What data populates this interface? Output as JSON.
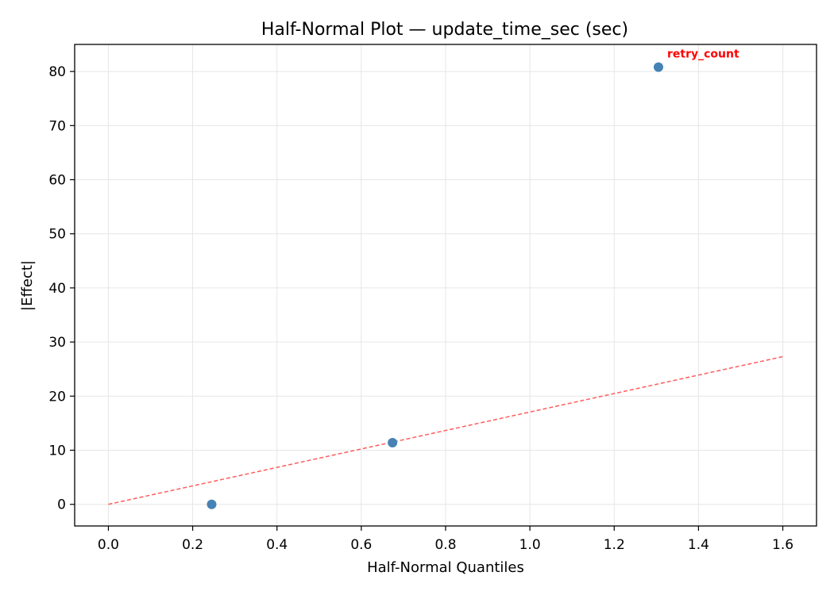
{
  "chart_data": {
    "type": "scatter",
    "title": "Half-Normal Plot — update_time_sec (sec)",
    "xlabel": "Half-Normal Quantiles",
    "ylabel": "|Effect|",
    "xlim": [
      -0.08,
      1.68
    ],
    "ylim": [
      -4,
      85
    ],
    "xticks": [
      0.0,
      0.2,
      0.4,
      0.6,
      0.8,
      1.0,
      1.2,
      1.4,
      1.6
    ],
    "xtick_labels": [
      "0.0",
      "0.2",
      "0.4",
      "0.6",
      "0.8",
      "1.0",
      "1.2",
      "1.4",
      "1.6"
    ],
    "yticks": [
      0,
      10,
      20,
      30,
      40,
      50,
      60,
      70,
      80
    ],
    "ytick_labels": [
      "0",
      "10",
      "20",
      "30",
      "40",
      "50",
      "60",
      "70",
      "80"
    ],
    "grid": true,
    "points": [
      {
        "x": 0.245,
        "y": 0.0,
        "label": ""
      },
      {
        "x": 0.674,
        "y": 11.4,
        "label": ""
      },
      {
        "x": 1.305,
        "y": 80.8,
        "label": "retry_count"
      }
    ],
    "reference_line": {
      "x": [
        0.0,
        1.6
      ],
      "y": [
        0.0,
        27.3
      ],
      "style": "dashed"
    },
    "colors": {
      "points": "#4682b4",
      "reference_line": "#ff5c5c",
      "annotation": "#ff0000",
      "grid": "#e6e6e6"
    }
  }
}
